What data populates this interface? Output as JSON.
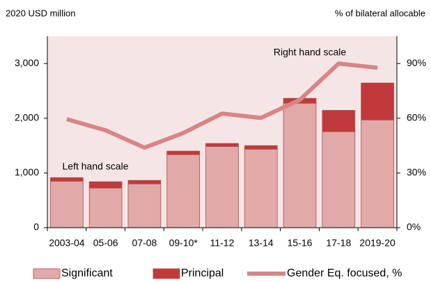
{
  "chart_data": {
    "type": "bar",
    "left_axis_label": "2020 USD million",
    "right_axis_label": "% of bilateral allocable",
    "annotations": [
      "Right hand scale",
      "Left hand scale"
    ],
    "categories": [
      "2003-04",
      "05-06",
      "07-08",
      "09-10*",
      "11-12",
      "13-14",
      "15-16",
      "17-18",
      "2019-20"
    ],
    "series": [
      {
        "name": "Significant",
        "type": "bar",
        "color": "#e2a9a9",
        "values": [
          850,
          725,
          800,
          1335,
          1485,
          1435,
          2275,
          1755,
          1970
        ]
      },
      {
        "name": "Principal",
        "type": "bar",
        "color": "#c0393b",
        "values": [
          65,
          115,
          65,
          65,
          55,
          65,
          90,
          390,
          675
        ]
      },
      {
        "name": "Gender Eq. focused, %",
        "type": "line",
        "axis": "y2",
        "color": "#d98585",
        "values": [
          59.5,
          53.4,
          43.9,
          51.9,
          62.6,
          60.2,
          70.1,
          90,
          87.7
        ]
      }
    ],
    "ylim": [
      0,
      3500
    ],
    "yticks": [
      0,
      {
        "value": 1000,
        "label": "1,000"
      },
      {
        "value": 2000,
        "label": "2,000"
      },
      {
        "value": 3000,
        "label": "3,000"
      }
    ],
    "y2lim": [
      0,
      105
    ],
    "y2ticks": [
      {
        "value": 0,
        "label": "0%"
      },
      {
        "value": 30,
        "label": "30%"
      },
      {
        "value": 60,
        "label": "60%"
      },
      {
        "value": 90,
        "label": "90%"
      }
    ],
    "plot_background": "#f5e6e6",
    "legend": "bottom"
  }
}
